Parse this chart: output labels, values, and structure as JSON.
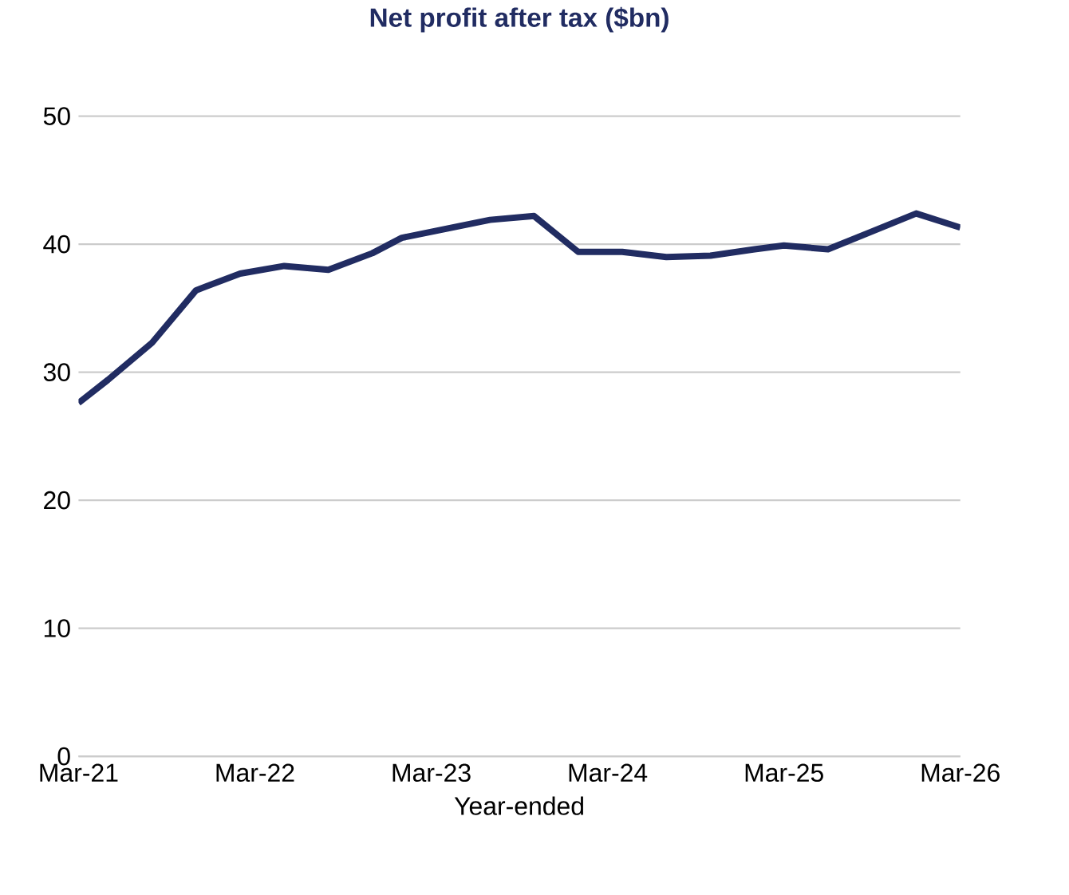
{
  "chart_data": {
    "type": "line",
    "title": "Net profit after tax ($bn)",
    "xlabel": "Year-ended",
    "x": [
      "2021-03",
      "2021-05",
      "2021-08",
      "2021-11",
      "2022-02",
      "2022-05",
      "2022-08",
      "2022-11",
      "2023-01",
      "2023-04",
      "2023-07",
      "2023-10",
      "2024-01",
      "2024-04",
      "2024-07",
      "2024-10",
      "2025-01",
      "2025-03",
      "2025-06",
      "2025-09",
      "2025-12",
      "2026-03"
    ],
    "series": [
      {
        "color": "#212c62",
        "values": [
          27.6,
          29.4,
          32.3,
          36.4,
          37.7,
          38.3,
          38.0,
          39.3,
          40.5,
          41.2,
          41.9,
          42.2,
          39.4,
          39.4,
          39.0,
          39.1,
          39.6,
          39.9,
          39.6,
          41.0,
          42.4,
          41.3
        ]
      }
    ],
    "xlim": [
      "2021-03",
      "2026-03"
    ],
    "xticks": [
      {
        "value": "2021-03",
        "label": "Mar-21"
      },
      {
        "value": "2022-03",
        "label": "Mar-22"
      },
      {
        "value": "2023-03",
        "label": "Mar-23"
      },
      {
        "value": "2024-03",
        "label": "Mar-24"
      },
      {
        "value": "2025-03",
        "label": "Mar-25"
      },
      {
        "value": "2026-03",
        "label": "Mar-26"
      }
    ],
    "ylim": [
      0,
      50
    ],
    "yticks": [
      0,
      10,
      20,
      30,
      40,
      50
    ],
    "grid": "y",
    "marker": "none",
    "line_style": "solid"
  }
}
